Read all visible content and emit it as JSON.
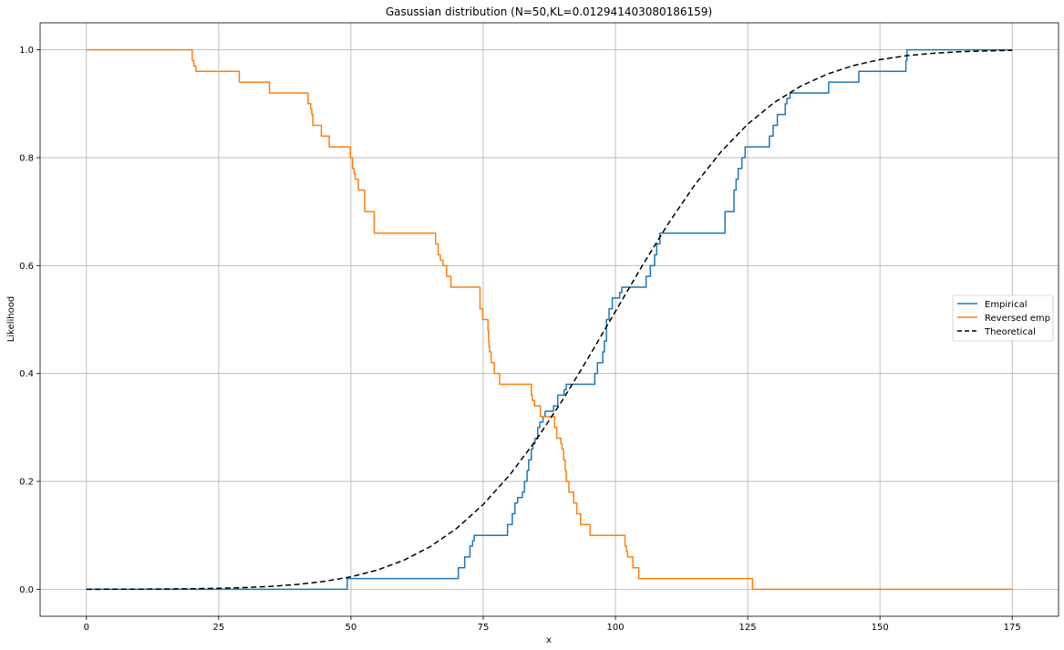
{
  "chart_data": {
    "type": "line",
    "title": "Gasussian distribution (N=50,KL=0.012941403080186159)",
    "xlabel": "x",
    "ylabel": "Likelihood",
    "xlim": [
      -8.75,
      183.75
    ],
    "ylim": [
      -0.05,
      1.05
    ],
    "xticks": [
      0,
      25,
      50,
      75,
      100,
      125,
      150,
      175
    ],
    "xtick_labels": [
      "0",
      "25",
      "50",
      "75",
      "100",
      "125",
      "150",
      "175"
    ],
    "yticks": [
      0.0,
      0.2,
      0.4,
      0.6,
      0.8,
      1.0
    ],
    "ytick_labels": [
      "0.0",
      "0.2",
      "0.4",
      "0.6",
      "0.8",
      "1.0"
    ],
    "grid": true,
    "legend_position": "center-right",
    "series": [
      {
        "name": "Empirical",
        "color": "#1f77b4",
        "style": "step",
        "x": [
          0,
          49.3,
          70.3,
          71.5,
          72.5,
          73.0,
          73.3,
          79.6,
          80.5,
          81.0,
          81.5,
          82.4,
          82.8,
          83.3,
          83.6,
          84.1,
          84.4,
          84.8,
          85.3,
          85.7,
          86.3,
          86.7,
          88.3,
          89.1,
          90.3,
          90.7,
          96.1,
          96.6,
          97.6,
          97.9,
          98.3,
          98.8,
          99.4,
          100.8,
          101.2,
          101.8,
          105.8,
          106.6,
          107.4,
          107.8,
          108.4,
          109.3,
          120.7,
          122.4,
          122.8,
          123.2,
          123.9,
          124.5,
          129.1,
          129.8,
          130.6,
          132.1,
          132.4,
          133.0,
          140.3,
          146.0,
          154.9,
          155.1,
          175.0
        ],
        "y": [
          0.0,
          0.02,
          0.04,
          0.06,
          0.08,
          0.09,
          0.1,
          0.12,
          0.14,
          0.16,
          0.17,
          0.18,
          0.2,
          0.22,
          0.24,
          0.26,
          0.27,
          0.28,
          0.3,
          0.31,
          0.32,
          0.33,
          0.34,
          0.36,
          0.37,
          0.38,
          0.4,
          0.42,
          0.44,
          0.46,
          0.5,
          0.52,
          0.54,
          0.55,
          0.56,
          0.56,
          0.58,
          0.6,
          0.62,
          0.64,
          0.66,
          0.66,
          0.7,
          0.74,
          0.76,
          0.78,
          0.8,
          0.82,
          0.84,
          0.86,
          0.88,
          0.9,
          0.91,
          0.92,
          0.94,
          0.96,
          0.98,
          1.0,
          1.0
        ]
      },
      {
        "name": "Reversed emp",
        "color": "#ff7f0e",
        "style": "step",
        "x": [
          0,
          20.0,
          20.3,
          20.7,
          28.9,
          34.6,
          41.9,
          42.4,
          42.6,
          42.8,
          44.4,
          45.0,
          45.9,
          49.9,
          50.3,
          50.6,
          50.8,
          51.4,
          52.6,
          54.4,
          66.0,
          66.5,
          66.9,
          67.4,
          68.1,
          68.9,
          69.6,
          74.4,
          74.9,
          75.9,
          76.0,
          76.1,
          76.2,
          76.5,
          76.7,
          77.1,
          78.1,
          78.8,
          84.1,
          84.3,
          84.7,
          85.1,
          85.8,
          86.9,
          88.5,
          88.9,
          89.7,
          89.9,
          90.2,
          90.5,
          90.7,
          91.2,
          92.1,
          92.7,
          93.4,
          95.2,
          101.8,
          102.1,
          102.3,
          102.5,
          103.3,
          104.4,
          125.9,
          175.0
        ],
        "y": [
          1.0,
          0.98,
          0.97,
          0.96,
          0.94,
          0.92,
          0.9,
          0.89,
          0.88,
          0.86,
          0.84,
          0.84,
          0.82,
          0.8,
          0.78,
          0.77,
          0.76,
          0.74,
          0.7,
          0.66,
          0.64,
          0.62,
          0.61,
          0.6,
          0.58,
          0.56,
          0.56,
          0.52,
          0.5,
          0.48,
          0.46,
          0.45,
          0.44,
          0.42,
          0.42,
          0.4,
          0.38,
          0.38,
          0.36,
          0.35,
          0.34,
          0.34,
          0.32,
          0.32,
          0.3,
          0.28,
          0.27,
          0.26,
          0.24,
          0.22,
          0.2,
          0.18,
          0.16,
          0.14,
          0.12,
          0.1,
          0.08,
          0.07,
          0.06,
          0.06,
          0.04,
          0.02,
          0.0,
          0.0
        ]
      },
      {
        "name": "Theoretical",
        "color": "#000000",
        "style": "dashed",
        "x": [
          0,
          5,
          10,
          15,
          20,
          25,
          30,
          35,
          40,
          45,
          50,
          55,
          60,
          65,
          70,
          75,
          80,
          85,
          90,
          95,
          100,
          105,
          110,
          115,
          120,
          125,
          130,
          135,
          140,
          145,
          150,
          155,
          160,
          165,
          170,
          175
        ],
        "y": [
          0.0001,
          0.0002,
          0.0003,
          0.0006,
          0.0011,
          0.0019,
          0.0033,
          0.0055,
          0.0091,
          0.0147,
          0.0231,
          0.0357,
          0.0538,
          0.0791,
          0.1131,
          0.1571,
          0.2117,
          0.2766,
          0.3506,
          0.4312,
          0.5151,
          0.5987,
          0.678,
          0.7497,
          0.8115,
          0.8622,
          0.9021,
          0.9325,
          0.9548,
          0.9708,
          0.9818,
          0.989,
          0.9935,
          0.9963,
          0.9979,
          0.9989
        ]
      }
    ]
  }
}
